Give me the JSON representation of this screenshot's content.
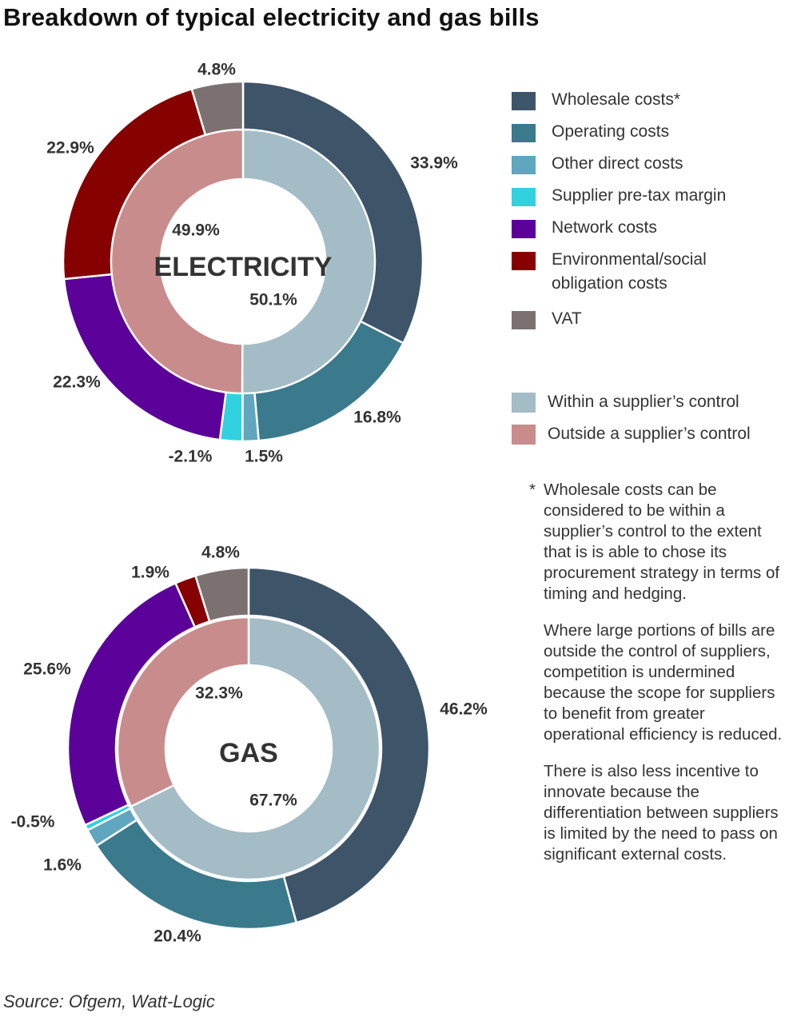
{
  "title": "Breakdown of typical electricity and gas bills",
  "colors": {
    "wholesale": "#3e5468",
    "operating": "#3b798c",
    "other_direct": "#5fa6be",
    "margin": "#32d1e0",
    "network": "#5b0199",
    "environmental": "#870000",
    "vat": "#7a7170",
    "within": "#a3bcc6",
    "outside": "#c98c8c"
  },
  "legend": {
    "items": [
      {
        "label": "Wholesale costs*",
        "color": "#3e5468"
      },
      {
        "label": "Operating costs",
        "color": "#3b798c"
      },
      {
        "label": "Other direct costs",
        "color": "#5fa6be"
      },
      {
        "label": "Supplier pre-tax margin",
        "color": "#32d1e0"
      },
      {
        "label": "Network costs",
        "color": "#5b0199"
      },
      {
        "label": "Environmental/social obligation costs",
        "color": "#870000"
      },
      {
        "label": "VAT",
        "color": "#7a7170"
      }
    ],
    "control": [
      {
        "label": "Within a supplier’s control",
        "color": "#a3bcc6"
      },
      {
        "label": "Outside a supplier’s control",
        "color": "#c98c8c"
      }
    ]
  },
  "notes": {
    "star": "*",
    "wholesale_note": "Wholesale costs can be considered to be within a supplier’s control to the extent that is is able to chose its procurement strategy in terms of timing and hedging.",
    "paragraph1": "Where large portions of bills are outside the control of suppliers, competition is undermined because the scope for suppliers to benefit from greater operational efficiency is reduced.",
    "paragraph2": "There is also less incentive to innovate because the differentiation between suppliers is limited by the need to pass on significant external costs."
  },
  "source": "Source: Ofgem, Watt-Logic",
  "chart_data": [
    {
      "type": "pie",
      "center_label": "ELECTRICITY",
      "outer": {
        "categories": [
          "Wholesale costs*",
          "Operating costs",
          "Other direct costs",
          "Supplier pre-tax margin",
          "Network costs",
          "Environmental/social obligation costs",
          "VAT"
        ],
        "values": [
          33.9,
          16.8,
          1.5,
          -2.1,
          22.3,
          22.9,
          4.8
        ],
        "labels": [
          "33.9%",
          "16.8%",
          "1.5%",
          "-2.1%",
          "22.3%",
          "22.9%",
          "4.8%"
        ]
      },
      "inner": {
        "categories": [
          "Within a supplier’s control",
          "Outside a supplier’s control"
        ],
        "values": [
          50.1,
          49.9
        ],
        "labels": [
          "50.1%",
          "49.9%"
        ]
      }
    },
    {
      "type": "pie",
      "center_label": "GAS",
      "outer": {
        "categories": [
          "Wholesale costs*",
          "Operating costs",
          "Other direct costs",
          "Supplier pre-tax margin",
          "Network costs",
          "Environmental/social obligation costs",
          "VAT"
        ],
        "values": [
          46.2,
          20.4,
          1.6,
          -0.5,
          25.6,
          1.9,
          4.8
        ],
        "labels": [
          "46.2%",
          "20.4%",
          "1.6%",
          "-0.5%",
          "25.6%",
          "1.9%",
          "4.8%"
        ]
      },
      "inner": {
        "categories": [
          "Within a supplier’s control",
          "Outside a supplier’s control"
        ],
        "values": [
          67.7,
          32.3
        ],
        "labels": [
          "67.7%",
          "32.3%"
        ]
      }
    }
  ]
}
